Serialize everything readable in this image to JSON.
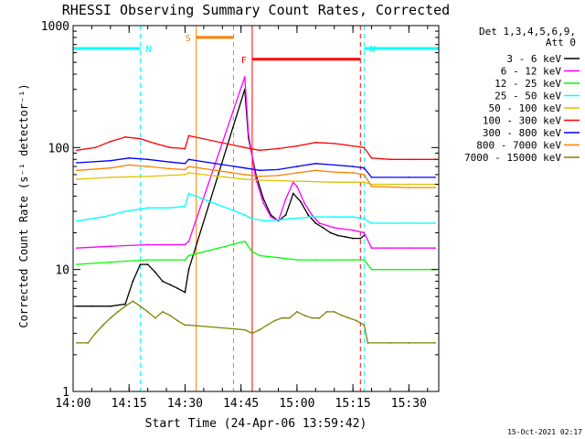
{
  "chart_data": {
    "type": "line",
    "title": "RHESSI Observing Summary Count Rates, Corrected",
    "xlabel": "Start Time (24-Apr-06 13:59:42)",
    "ylabel": "Corrected Count Rate (s⁻¹ detector⁻¹)",
    "yscale": "log",
    "ylim": [
      1,
      1000
    ],
    "xlim": [
      "14:00",
      "15:38"
    ],
    "x_ticks": [
      "14:00",
      "14:15",
      "14:30",
      "14:45",
      "15:00",
      "15:15",
      "15:30"
    ],
    "y_ticks": [
      "1",
      "10",
      "100",
      "1000"
    ],
    "legend_header": [
      "Det 1,3,4,5,6,9,",
      "Att 0"
    ],
    "legend_position": "right",
    "grid": false,
    "series": [
      {
        "name": "3 - 6 keV",
        "color": "#000000",
        "x": [
          "14:01",
          "14:05",
          "14:10",
          "14:14",
          "14:16",
          "14:18",
          "14:20",
          "14:22",
          "14:24",
          "14:26",
          "14:28",
          "14:30",
          "14:31",
          "14:46",
          "14:47",
          "14:49",
          "14:51",
          "14:53",
          "14:55",
          "14:57",
          "14:59",
          "15:01",
          "15:03",
          "15:05",
          "15:07",
          "15:09",
          "15:11",
          "15:13",
          "15:15",
          "15:17",
          "15:18"
        ],
        "values": [
          5,
          5,
          5,
          5.2,
          8,
          11,
          11,
          9.5,
          8,
          7.5,
          7,
          6.5,
          10,
          300,
          120,
          60,
          38,
          28,
          25,
          28,
          42,
          36,
          28,
          24,
          22,
          20,
          19,
          18.5,
          18,
          18,
          19
        ]
      },
      {
        "name": "6 - 12 keV",
        "color": "#ff00ff",
        "x": [
          "14:01",
          "14:10",
          "14:20",
          "14:30",
          "14:31",
          "14:46",
          "14:47",
          "14:49",
          "14:51",
          "14:53",
          "14:55",
          "14:57",
          "14:59",
          "15:00",
          "15:02",
          "15:04",
          "15:06",
          "15:10",
          "15:15",
          "15:18",
          "15:20",
          "15:25",
          "15:30",
          "15:37"
        ],
        "values": [
          15,
          15.5,
          16,
          16,
          17,
          380,
          130,
          55,
          35,
          27,
          25,
          38,
          52,
          48,
          35,
          28,
          24,
          22,
          21,
          20,
          15,
          15,
          15,
          15
        ]
      },
      {
        "name": "12 - 25 keV",
        "color": "#00ff00",
        "x": [
          "14:01",
          "14:10",
          "14:20",
          "14:30",
          "14:31",
          "14:46",
          "14:48",
          "14:50",
          "14:55",
          "15:00",
          "15:05",
          "15:10",
          "15:15",
          "15:18",
          "15:20",
          "15:30",
          "15:37"
        ],
        "values": [
          11,
          11.5,
          12,
          12,
          13,
          17,
          14,
          13,
          12.5,
          12,
          12,
          12,
          12,
          12,
          10,
          10,
          10
        ]
      },
      {
        "name": "25 - 50 keV",
        "color": "#00ffff",
        "x": [
          "14:01",
          "14:08",
          "14:14",
          "14:20",
          "14:26",
          "14:30",
          "14:31",
          "14:46",
          "14:48",
          "14:52",
          "14:58",
          "15:04",
          "15:10",
          "15:15",
          "15:18",
          "15:20",
          "15:30",
          "15:37"
        ],
        "values": [
          25,
          27,
          30,
          32,
          32,
          33,
          42,
          28,
          26,
          25,
          26,
          27,
          27,
          27,
          26,
          24,
          24,
          24
        ]
      },
      {
        "name": "50 - 100 keV",
        "color": "#e0c000",
        "x": [
          "14:01",
          "14:10",
          "14:20",
          "14:30",
          "14:31",
          "14:46",
          "14:50",
          "15:00",
          "15:10",
          "15:18",
          "15:20",
          "15:30",
          "15:37"
        ],
        "values": [
          55,
          57,
          58,
          60,
          62,
          55,
          54,
          53,
          52,
          52,
          50,
          50,
          50
        ]
      },
      {
        "name": "100 - 300 keV",
        "color": "#ff0000",
        "x": [
          "14:01",
          "14:06",
          "14:10",
          "14:14",
          "14:18",
          "14:22",
          "14:26",
          "14:30",
          "14:31",
          "14:46",
          "14:50",
          "14:55",
          "15:00",
          "15:05",
          "15:10",
          "15:15",
          "15:18",
          "15:20",
          "15:25",
          "15:30",
          "15:37"
        ],
        "values": [
          95,
          100,
          112,
          122,
          118,
          108,
          100,
          98,
          125,
          100,
          95,
          98,
          103,
          110,
          108,
          103,
          100,
          82,
          80,
          80,
          80
        ]
      },
      {
        "name": "300 - 800 keV",
        "color": "#0000ff",
        "x": [
          "14:01",
          "14:10",
          "14:15",
          "14:20",
          "14:26",
          "14:30",
          "14:31",
          "14:46",
          "14:50",
          "14:55",
          "15:00",
          "15:05",
          "15:10",
          "15:15",
          "15:18",
          "15:20",
          "15:30",
          "15:37"
        ],
        "values": [
          75,
          78,
          82,
          80,
          76,
          74,
          80,
          68,
          65,
          66,
          70,
          74,
          72,
          70,
          68,
          57,
          57,
          57
        ]
      },
      {
        "name": "800 - 7000 keV",
        "color": "#ff8000",
        "x": [
          "14:01",
          "14:10",
          "14:15",
          "14:20",
          "14:26",
          "14:30",
          "14:31",
          "14:46",
          "14:50",
          "14:55",
          "15:00",
          "15:05",
          "15:10",
          "15:15",
          "15:18",
          "15:20",
          "15:30",
          "15:37"
        ],
        "values": [
          65,
          68,
          72,
          70,
          67,
          66,
          70,
          60,
          58,
          59,
          62,
          65,
          63,
          62,
          60,
          48,
          47,
          47
        ]
      },
      {
        "name": "7000 - 15000 keV",
        "color": "#808000",
        "x": [
          "14:01",
          "14:04",
          "14:06",
          "14:08",
          "14:10",
          "14:12",
          "14:14",
          "14:16",
          "14:18",
          "14:20",
          "14:22",
          "14:24",
          "14:26",
          "14:28",
          "14:30",
          "14:31",
          "14:46",
          "14:48",
          "14:50",
          "14:52",
          "14:54",
          "14:56",
          "14:58",
          "15:00",
          "15:02",
          "15:04",
          "15:06",
          "15:08",
          "15:10",
          "15:12",
          "15:14",
          "15:16",
          "15:18",
          "15:19",
          "15:25",
          "15:30",
          "15:37"
        ],
        "values": [
          2.5,
          2.5,
          3,
          3.5,
          4,
          4.5,
          5,
          5.5,
          5,
          4.5,
          4,
          4.5,
          4.2,
          3.8,
          3.5,
          3.5,
          3.2,
          3,
          3.2,
          3.5,
          3.8,
          4,
          4,
          4.5,
          4.2,
          4,
          4,
          4.5,
          4.5,
          4.2,
          4,
          3.8,
          3.5,
          2.5,
          2.5,
          2.5,
          2.5
        ]
      }
    ],
    "annotations": [
      {
        "label": "N",
        "kind": "night",
        "color": "#00ffff",
        "x_start": "14:00",
        "x_end": "14:18",
        "level": 650
      },
      {
        "label": "N",
        "kind": "night",
        "color": "#00ffff",
        "x_start": "15:18",
        "x_end": "15:38",
        "level": 650
      },
      {
        "label": "S",
        "kind": "saa",
        "color": "#ff8000",
        "x_start": "14:33",
        "x_end": "14:43",
        "level": 800
      },
      {
        "label": "F",
        "kind": "flare",
        "color": "#ff0000",
        "x_start": "14:48",
        "x_end": "15:17",
        "level": 530
      }
    ],
    "footer_timestamp": "15-Oct-2021 02:17"
  }
}
